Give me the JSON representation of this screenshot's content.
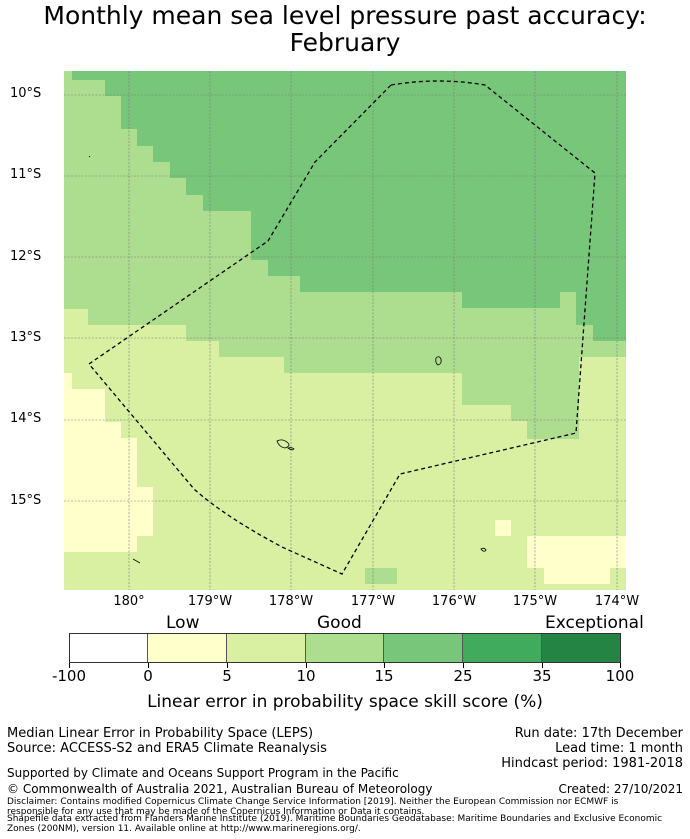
{
  "title": {
    "line1": "Monthly mean sea level pressure past accuracy:",
    "line2": "February"
  },
  "map": {
    "lat_labels": [
      "10°S",
      "11°S",
      "12°S",
      "13°S",
      "14°S",
      "15°S"
    ],
    "lon_labels": [
      "180°",
      "179°W",
      "178°W",
      "177°W",
      "176°W",
      "175°W",
      "174°W"
    ],
    "colors": {
      "exceptional_dark": "#78c679",
      "exceptional_light": "#addd8e",
      "good": "#d9f0a3",
      "low": "#ffffcc",
      "boundary": "#000000",
      "grid": "#7a7a7a"
    }
  },
  "colorbar": {
    "category_labels": [
      "Low",
      "Good",
      "Exceptional"
    ],
    "tick_labels": [
      "-100",
      "0",
      "5",
      "10",
      "15",
      "25",
      "35",
      "100"
    ],
    "segments": [
      {
        "range": "-100 to 0",
        "color": "#ffffff"
      },
      {
        "range": "0 to 5",
        "color": "#ffffcc"
      },
      {
        "range": "5 to 10",
        "color": "#d9f0a3"
      },
      {
        "range": "10 to 15",
        "color": "#addd8e"
      },
      {
        "range": "15 to 25",
        "color": "#78c679"
      },
      {
        "range": "25 to 35",
        "color": "#41ab5d"
      },
      {
        "range": "35 to 100",
        "color": "#238443"
      }
    ],
    "caption": "Linear error in probability space skill score (%)"
  },
  "info": {
    "method": "Median Linear Error in Probability Space (LEPS)",
    "source": "Source: ACCESS-S2 and ERA5 Climate Reanalysis",
    "run_date": "Run date: 17th December",
    "lead_time": "Lead time: 1 month",
    "hindcast": "Hindcast period: 1981-2018",
    "support": "Supported by Climate and Oceans Support Program in the Pacific",
    "copyright": "© Commonwealth of Australia 2021, Australian Bureau of Meteorology",
    "created": "Created: 27/10/2021",
    "disclaimer1": "Disclaimer: Contains modified Copernicus Climate Change Service Information [2019]. Neither the European Commission nor ECMWF is",
    "disclaimer2": "responsible for any use that may be made of the Copernicus Information or Data it contains.",
    "disclaimer3": "Shapefile data extracted from Flanders Marine Institute (2019). Maritime Boundaries Geodatabase: Maritime Boundaries and Exclusive Economic",
    "disclaimer4": "Zones (200NM), version 11. Available online at http://www.marineregions.org/."
  }
}
